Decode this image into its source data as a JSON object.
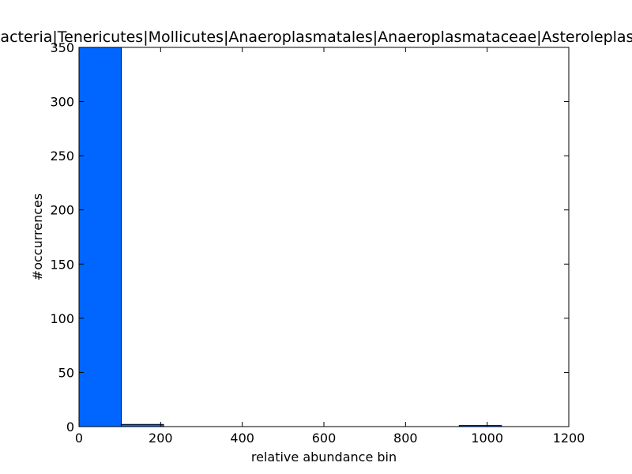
{
  "chart_data": {
    "type": "bar",
    "title": "Bacteria|Tenericutes|Mollicutes|Anaeroplasmatales|Anaeroplasmataceae|Asteroleplasma",
    "xlabel": "relative abundance bin",
    "ylabel": "#occurrences",
    "xlim": [
      0,
      1200
    ],
    "ylim": [
      0,
      350
    ],
    "xticks": [
      "0",
      "200",
      "400",
      "600",
      "800",
      "1000",
      "1200"
    ],
    "yticks": [
      "0",
      "50",
      "100",
      "150",
      "200",
      "250",
      "300",
      "350"
    ],
    "bins": [
      {
        "x0": 0,
        "x1": 103.5,
        "count": 350
      },
      {
        "x0": 103.5,
        "x1": 207,
        "count": 2
      },
      {
        "x0": 931.5,
        "x1": 1035,
        "count": 1
      }
    ],
    "bar_color": "#0066ff",
    "grid": false
  }
}
